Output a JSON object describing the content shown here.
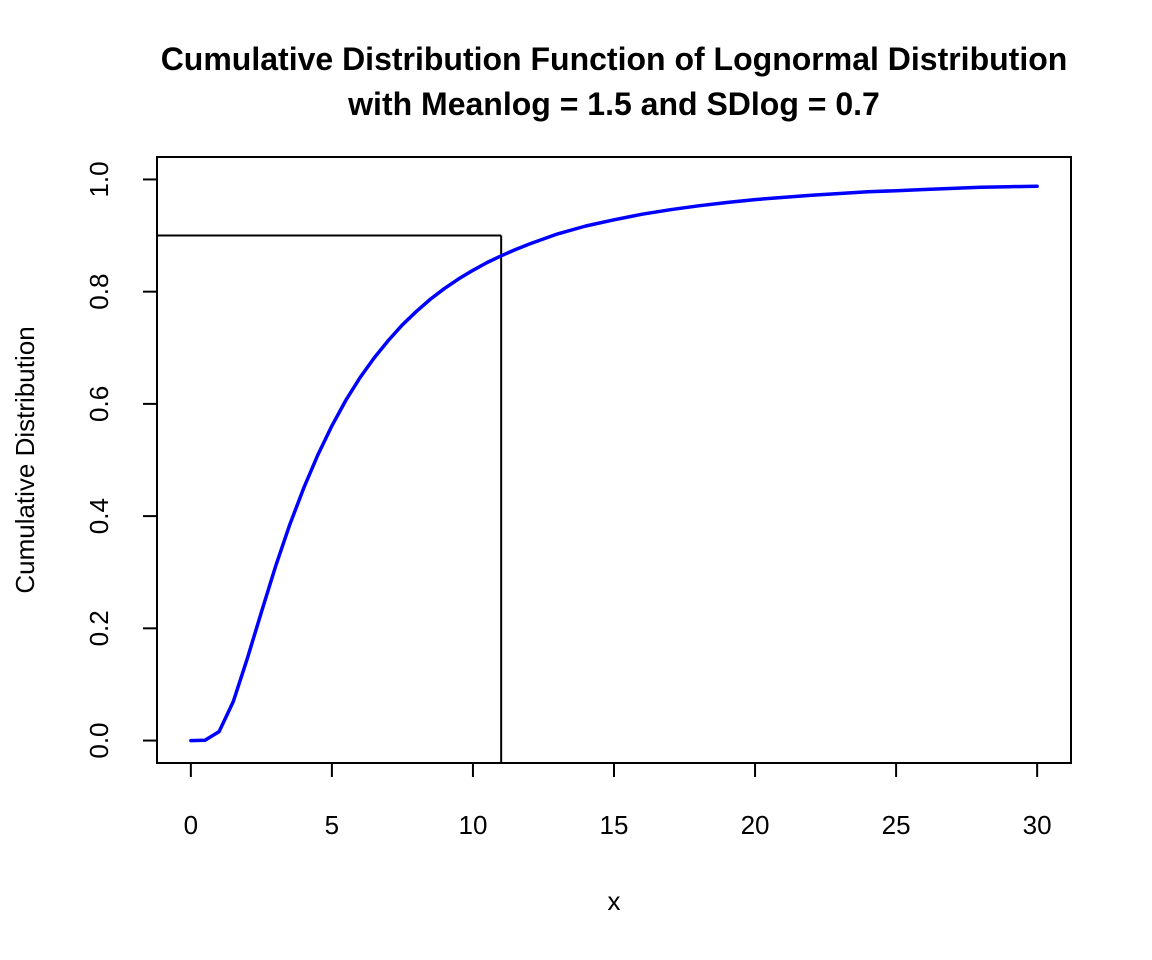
{
  "chart_data": {
    "type": "line",
    "title": "Cumulative Distribution Function of Lognormal Distribution",
    "subtitle": "with Meanlog = 1.5 and SDlog = 0.7",
    "xlabel": "x",
    "ylabel": "Cumulative Distribution",
    "xlim": [
      -1.2,
      31.2
    ],
    "ylim": [
      -0.04,
      1.04
    ],
    "x_ticks": [
      0,
      5,
      10,
      15,
      20,
      25,
      30
    ],
    "x_tick_labels": [
      "0",
      "5",
      "10",
      "15",
      "20",
      "25",
      "30"
    ],
    "y_ticks": [
      0.0,
      0.2,
      0.4,
      0.6,
      0.8,
      1.0
    ],
    "y_tick_labels": [
      "0.0",
      "0.2",
      "0.4",
      "0.6",
      "0.8",
      "1.0"
    ],
    "grid": false,
    "series": [
      {
        "color": "#0000ff",
        "x": [
          0,
          0.5,
          1,
          1.5,
          2,
          2.5,
          3,
          3.5,
          4,
          4.5,
          5,
          5.5,
          6,
          6.5,
          7,
          7.5,
          8,
          8.5,
          9,
          9.5,
          10,
          10.5,
          11,
          11.5,
          12,
          13,
          14,
          15,
          16,
          17,
          18,
          19,
          20,
          21,
          22,
          23,
          24,
          25,
          26,
          27,
          28,
          29,
          30
        ],
        "y": [
          0,
          0.0006,
          0.016,
          0.069,
          0.146,
          0.229,
          0.31,
          0.384,
          0.45,
          0.509,
          0.561,
          0.607,
          0.647,
          0.682,
          0.713,
          0.741,
          0.765,
          0.787,
          0.806,
          0.823,
          0.838,
          0.852,
          0.864,
          0.875,
          0.885,
          0.903,
          0.917,
          0.928,
          0.938,
          0.946,
          0.953,
          0.959,
          0.964,
          0.968,
          0.972,
          0.975,
          0.978,
          0.98,
          0.982,
          0.984,
          0.986,
          0.987,
          0.988
        ]
      }
    ],
    "reference_lines": {
      "color": "#000000",
      "horizontal": {
        "y": 0.9,
        "from_x": -1.2,
        "to_x": 11
      },
      "vertical": {
        "x": 11,
        "from_y": -0.04,
        "to_y": 0.9
      }
    }
  }
}
